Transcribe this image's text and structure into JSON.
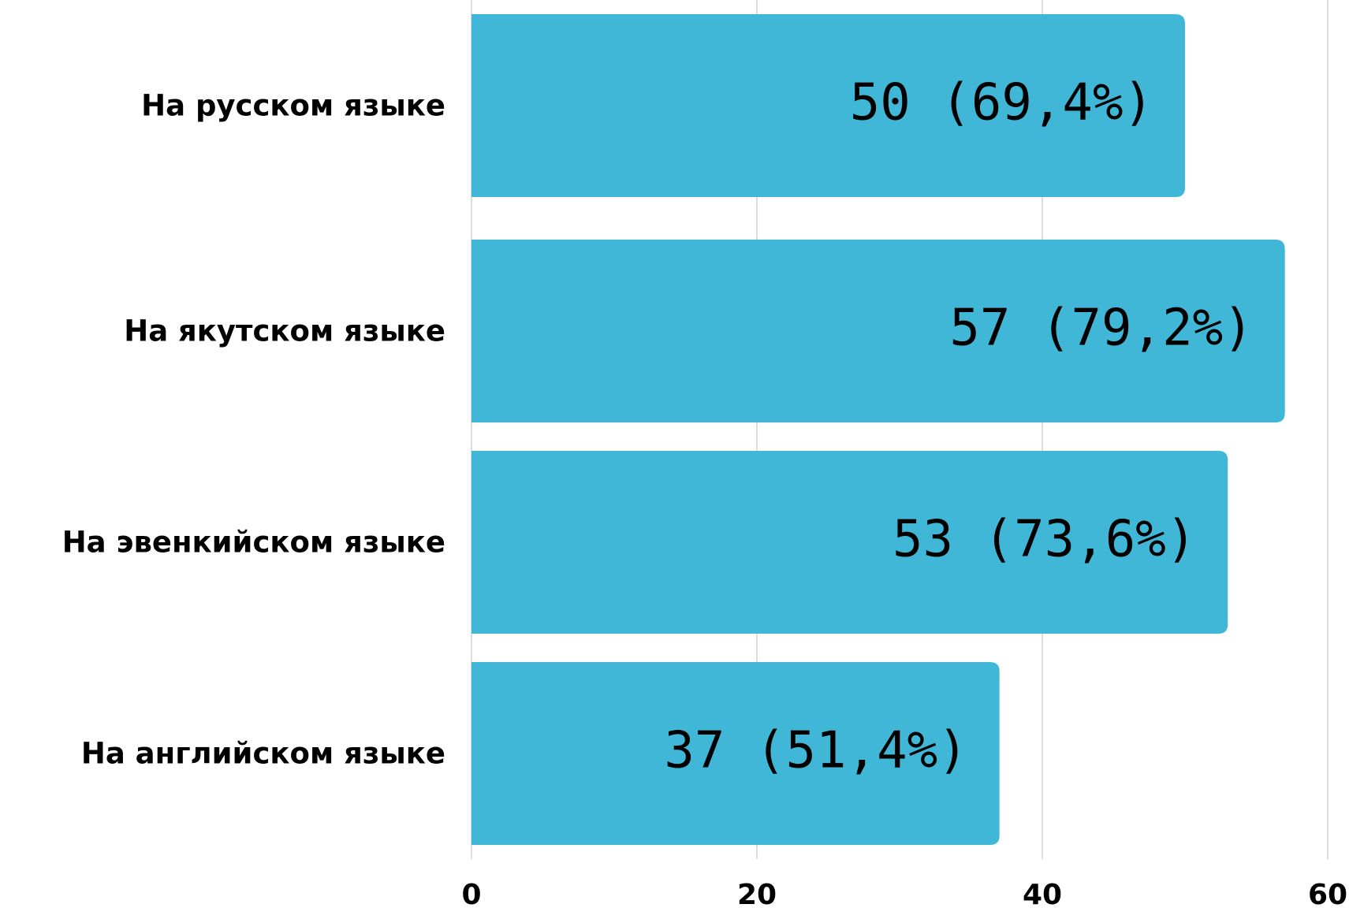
{
  "chart_data": {
    "type": "bar",
    "orientation": "horizontal",
    "categories": [
      "На русском языке",
      "На якутском языке",
      "На эвенкийском языке",
      "На английском языке"
    ],
    "values": [
      50,
      57,
      53,
      37
    ],
    "value_labels": [
      "50 (69,4%)",
      "57 (79,2%)",
      "53 (73,6%)",
      "37 (51,4%)"
    ],
    "color": "#41b7d7",
    "xlim": [
      0,
      60
    ],
    "xticks": [
      0,
      20,
      40,
      60
    ],
    "grid": true
  }
}
